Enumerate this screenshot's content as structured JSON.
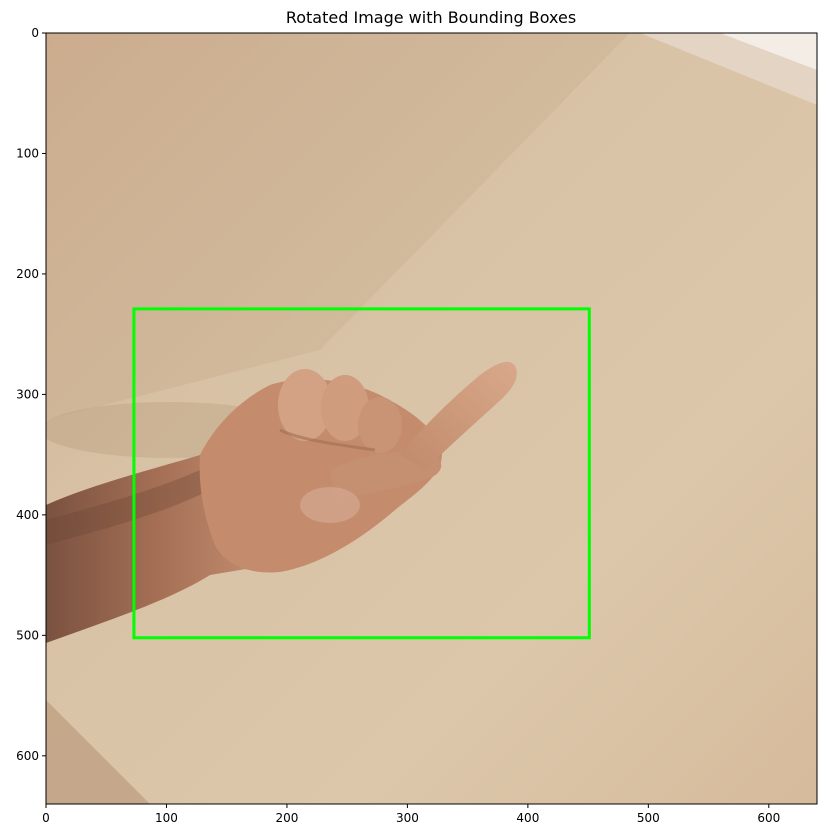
{
  "figure": {
    "title": "Rotated Image with Bounding Boxes",
    "x_ticks": [
      "0",
      "100",
      "200",
      "300",
      "400",
      "500",
      "600"
    ],
    "y_ticks": [
      "0",
      "100",
      "200",
      "300",
      "400",
      "500",
      "600"
    ]
  },
  "chart_data": {
    "type": "image",
    "title": "Rotated Image with Bounding Boxes",
    "xlim": [
      0,
      640
    ],
    "ylim": [
      640,
      0
    ],
    "x_ticks": [
      0,
      100,
      200,
      300,
      400,
      500,
      600
    ],
    "y_ticks": [
      0,
      100,
      200,
      300,
      400,
      500,
      600
    ],
    "bounding_boxes": [
      {
        "x_min": 73,
        "y_min": 229,
        "x_max": 451,
        "y_max": 502,
        "color": "#00ff00"
      }
    ],
    "image": {
      "background_color": "#d2b9a0",
      "skin_color": "#c9906f"
    }
  }
}
